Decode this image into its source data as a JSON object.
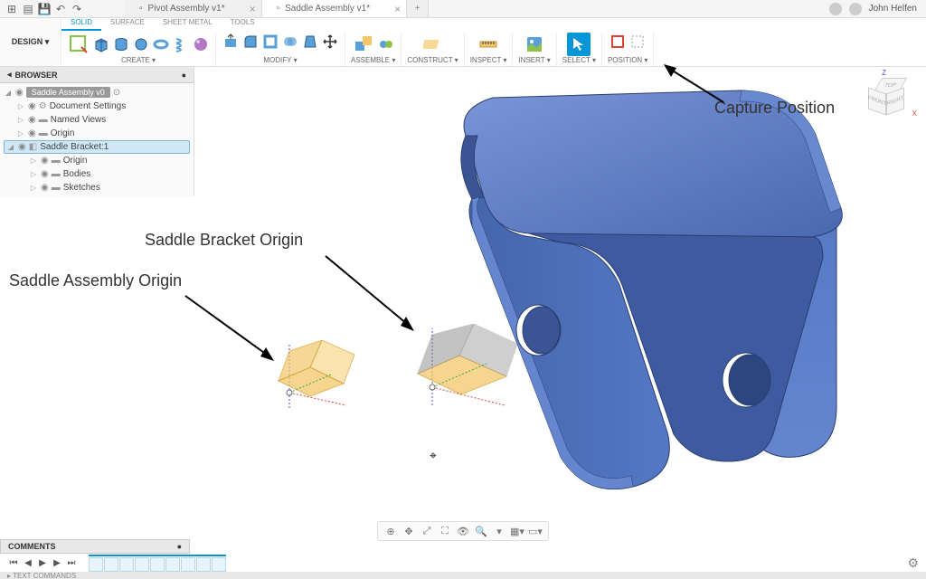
{
  "titlebar": {
    "tabs": [
      {
        "label": "Pivot Assembly v1*",
        "active": false
      },
      {
        "label": "Saddle Assembly v1*",
        "active": true
      }
    ],
    "user": "John Helfen"
  },
  "ribbon": {
    "design": "DESIGN ▾",
    "tabs": [
      "SOLID",
      "SURFACE",
      "SHEET METAL",
      "TOOLS"
    ],
    "active_tab": "SOLID",
    "groups": {
      "create": "CREATE ▾",
      "modify": "MODIFY ▾",
      "assemble": "ASSEMBLE ▾",
      "construct": "CONSTRUCT ▾",
      "inspect": "INSPECT ▾",
      "insert": "INSERT ▾",
      "select": "SELECT ▾",
      "position": "POSITION ▾"
    },
    "colors": {
      "accent": "#0696d7",
      "tool_blue": "#5aa0d8",
      "tool_green": "#8bc34a",
      "tool_purple": "#b278c4"
    }
  },
  "browser": {
    "title": "BROWSER",
    "root": "Saddle Assembly v0",
    "items": [
      {
        "label": "Document Settings",
        "indent": 1,
        "arrow": "▷",
        "icon": "gear"
      },
      {
        "label": "Named Views",
        "indent": 1,
        "arrow": "▷",
        "icon": "folder"
      },
      {
        "label": "Origin",
        "indent": 1,
        "arrow": "▷",
        "icon": "folder"
      },
      {
        "label": "Saddle Bracket:1",
        "indent": 1,
        "arrow": "◢",
        "icon": "comp",
        "hl": true
      },
      {
        "label": "Origin",
        "indent": 2,
        "arrow": "▷",
        "icon": "folder"
      },
      {
        "label": "Bodies",
        "indent": 2,
        "arrow": "▷",
        "icon": "folder"
      },
      {
        "label": "Sketches",
        "indent": 2,
        "arrow": "▷",
        "icon": "folder"
      }
    ]
  },
  "annotations": {
    "capture": "Capture Position",
    "bracket_origin": "Saddle Bracket Origin",
    "assembly_origin": "Saddle Assembly Origin"
  },
  "model": {
    "fill": "#5478c4",
    "edge": "#2a3f70",
    "hole_fill": "#3a5494"
  },
  "origin_plane": {
    "fill": "#f4c76a",
    "opacity": 0.75,
    "axis_x": "#d43",
    "axis_y": "#3a3",
    "axis_z": "#44d"
  },
  "viewcube": {
    "top": "TOP",
    "front": "FRONT",
    "right": "RIGHT"
  },
  "comments": "COMMENTS",
  "textcmd": "TEXT COMMANDS",
  "timeline_count": 9
}
